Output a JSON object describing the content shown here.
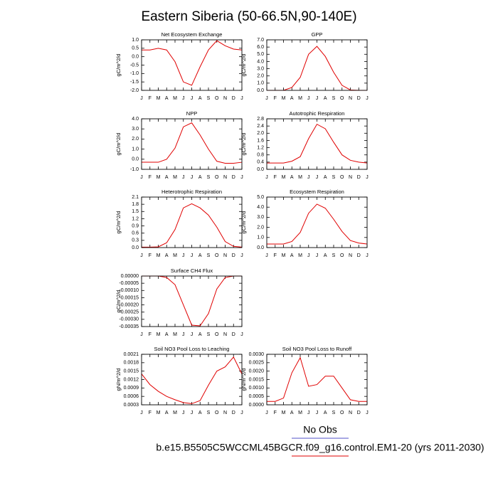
{
  "title": "Eastern Siberia (50-66.5N,90-140E)",
  "legend": [
    {
      "name": "No Obs",
      "color": "#5050c8"
    },
    {
      "name": "b.e15.B5505C5WCCML45BGCR.f09_g16.control.EM1-20 (yrs 2011-2030)",
      "color": "#e00000"
    }
  ],
  "chart_data": [
    {
      "type": "line",
      "title": "Net Ecosystem Exchange",
      "y_label": "gC/m^2/d",
      "categories": [
        "J",
        "F",
        "M",
        "A",
        "M",
        "J",
        "J",
        "A",
        "S",
        "O",
        "N",
        "D",
        "J"
      ],
      "series": [
        {
          "color": "#e00000",
          "values": [
            0.4,
            0.4,
            0.5,
            0.4,
            -0.3,
            -1.5,
            -1.7,
            -0.6,
            0.4,
            0.95,
            0.65,
            0.45,
            0.4
          ]
        }
      ],
      "ylim": [
        -2,
        1
      ],
      "yticks": [
        {
          "value": -2,
          "label": "-2.0"
        },
        {
          "value": -1.5,
          "label": "-1.5"
        },
        {
          "value": -1,
          "label": "-1.0"
        },
        {
          "value": -0.5,
          "label": "-0.5"
        },
        {
          "value": 0,
          "label": "0.0"
        },
        {
          "value": 0.5,
          "label": "0.5"
        },
        {
          "value": 1,
          "label": "1.0"
        }
      ]
    },
    {
      "type": "line",
      "title": "GPP",
      "y_label": "gC/m^2/d",
      "categories": [
        "J",
        "F",
        "M",
        "A",
        "M",
        "J",
        "J",
        "A",
        "S",
        "O",
        "N",
        "D",
        "J"
      ],
      "series": [
        {
          "color": "#e00000",
          "values": [
            0,
            0,
            0,
            0.4,
            1.8,
            5.0,
            6.1,
            4.7,
            2.5,
            0.7,
            0.05,
            0,
            0
          ]
        }
      ],
      "ylim": [
        0,
        7
      ],
      "yticks": [
        {
          "value": 0,
          "label": "0.0"
        },
        {
          "value": 1,
          "label": "1.0"
        },
        {
          "value": 2,
          "label": "2.0"
        },
        {
          "value": 3,
          "label": "3.0"
        },
        {
          "value": 4,
          "label": "4.0"
        },
        {
          "value": 5,
          "label": "5.0"
        },
        {
          "value": 6,
          "label": "6.0"
        },
        {
          "value": 7,
          "label": "7.0"
        }
      ]
    },
    {
      "type": "line",
      "title": "NPP",
      "y_label": "gC/m^2/d",
      "categories": [
        "J",
        "F",
        "M",
        "A",
        "M",
        "J",
        "J",
        "A",
        "S",
        "O",
        "N",
        "D",
        "J"
      ],
      "series": [
        {
          "color": "#e00000",
          "values": [
            -0.3,
            -0.3,
            -0.3,
            0.0,
            1.1,
            3.2,
            3.6,
            2.4,
            1.0,
            -0.2,
            -0.4,
            -0.4,
            -0.3
          ]
        }
      ],
      "ylim": [
        -1,
        4
      ],
      "yticks": [
        {
          "value": -1,
          "label": "-1.0"
        },
        {
          "value": 0,
          "label": "0.0"
        },
        {
          "value": 1,
          "label": "1.0"
        },
        {
          "value": 2,
          "label": "2.0"
        },
        {
          "value": 3,
          "label": "3.0"
        },
        {
          "value": 4,
          "label": "4.0"
        }
      ]
    },
    {
      "type": "line",
      "title": "Autotrophic Respiration",
      "y_label": "gC/m^2/d",
      "categories": [
        "J",
        "F",
        "M",
        "A",
        "M",
        "J",
        "J",
        "A",
        "S",
        "O",
        "N",
        "D",
        "J"
      ],
      "series": [
        {
          "color": "#e00000",
          "values": [
            0.35,
            0.35,
            0.35,
            0.45,
            0.7,
            1.7,
            2.5,
            2.25,
            1.5,
            0.8,
            0.5,
            0.4,
            0.35
          ]
        }
      ],
      "ylim": [
        0,
        2.8
      ],
      "yticks": [
        {
          "value": 0,
          "label": "0.0"
        },
        0.4,
        0.8,
        1.2,
        1.6,
        {
          "value": 2,
          "label": "2.0"
        },
        2.4,
        2.8
      ]
    },
    {
      "type": "line",
      "title": "Heterotrophic Respiration",
      "y_label": "gC/m^2/d",
      "categories": [
        "J",
        "F",
        "M",
        "A",
        "M",
        "J",
        "J",
        "A",
        "S",
        "O",
        "N",
        "D",
        "J"
      ],
      "series": [
        {
          "color": "#e00000",
          "values": [
            0.02,
            0.02,
            0.03,
            0.2,
            0.75,
            1.65,
            1.82,
            1.65,
            1.35,
            0.85,
            0.25,
            0.05,
            0.02
          ]
        }
      ],
      "ylim": [
        0,
        2.1
      ],
      "yticks": [
        {
          "value": 0,
          "label": "0.0"
        },
        0.3,
        0.6,
        0.9,
        1.2,
        1.5,
        1.8,
        2.1
      ]
    },
    {
      "type": "line",
      "title": "Ecosystem Respiration",
      "y_label": "gC/m^2/d",
      "categories": [
        "J",
        "F",
        "M",
        "A",
        "M",
        "J",
        "J",
        "A",
        "S",
        "O",
        "N",
        "D",
        "J"
      ],
      "series": [
        {
          "color": "#e00000",
          "values": [
            0.35,
            0.35,
            0.35,
            0.6,
            1.5,
            3.4,
            4.3,
            3.9,
            2.8,
            1.6,
            0.7,
            0.45,
            0.35
          ]
        }
      ],
      "ylim": [
        0,
        5
      ],
      "yticks": [
        {
          "value": 0,
          "label": "0.0"
        },
        {
          "value": 1,
          "label": "1.0"
        },
        {
          "value": 2,
          "label": "2.0"
        },
        {
          "value": 3,
          "label": "3.0"
        },
        {
          "value": 4,
          "label": "4.0"
        },
        {
          "value": 5,
          "label": "5.0"
        }
      ]
    },
    {
      "type": "line",
      "title": "Surface CH4 Flux",
      "y_label": "gC/m^2/d",
      "categories": [
        "J",
        "F",
        "M",
        "A",
        "M",
        "J",
        "J",
        "A",
        "S",
        "O",
        "N",
        "D",
        "J"
      ],
      "series": [
        {
          "color": "#e00000",
          "values": [
            0,
            0,
            0,
            -1e-05,
            -6e-05,
            -0.0002,
            -0.00034,
            -0.000345,
            -0.00026,
            -9e-05,
            -1e-05,
            0,
            0
          ]
        }
      ],
      "ylim": [
        -0.00035,
        0
      ],
      "yticks": [
        {
          "value": -0.00035,
          "label": "-0.00035"
        },
        {
          "value": -0.0003,
          "label": "-0.00030"
        },
        {
          "value": -0.00025,
          "label": "-0.00025"
        },
        {
          "value": -0.0002,
          "label": "-0.00020"
        },
        {
          "value": -0.00015,
          "label": "-0.00015"
        },
        {
          "value": -0.0001,
          "label": "-0.00010"
        },
        {
          "value": -5e-05,
          "label": "-0.00005"
        },
        {
          "value": 0,
          "label": "0.00000"
        }
      ]
    },
    {
      "type": "line",
      "title": "Soil NO3 Pool Loss to Leaching",
      "y_label": "gN/m^2/d",
      "categories": [
        "J",
        "F",
        "M",
        "A",
        "M",
        "J",
        "J",
        "A",
        "S",
        "O",
        "N",
        "D",
        "J"
      ],
      "series": [
        {
          "color": "#e00000",
          "values": [
            0.0014,
            0.00102,
            0.00078,
            0.0006,
            0.00048,
            0.00038,
            0.00034,
            0.00045,
            0.001,
            0.0015,
            0.00165,
            0.002,
            0.0014
          ]
        }
      ],
      "ylim": [
        0.0003,
        0.0021
      ],
      "yticks": [
        0.0003,
        0.0006,
        0.0009,
        0.0012,
        0.0015,
        0.0018,
        0.0021
      ]
    },
    {
      "type": "line",
      "title": "Soil NO3 Pool Loss to Runoff",
      "y_label": "gN/m^2/d",
      "categories": [
        "J",
        "F",
        "M",
        "A",
        "M",
        "J",
        "J",
        "A",
        "S",
        "O",
        "N",
        "D",
        "J"
      ],
      "series": [
        {
          "color": "#e00000",
          "values": [
            0.0002,
            0.0002,
            0.0004,
            0.0019,
            0.0028,
            0.0011,
            0.0012,
            0.0017,
            0.0017,
            0.001,
            0.0003,
            0.0002,
            0.0002
          ]
        }
      ],
      "ylim": [
        0,
        0.003
      ],
      "yticks": [
        {
          "value": 0,
          "label": "0.0000"
        },
        0.0005,
        {
          "value": 0.001,
          "label": "0.0010"
        },
        0.0015,
        {
          "value": 0.002,
          "label": "0.0020"
        },
        0.0025,
        {
          "value": 0.003,
          "label": "0.0030"
        }
      ]
    }
  ]
}
